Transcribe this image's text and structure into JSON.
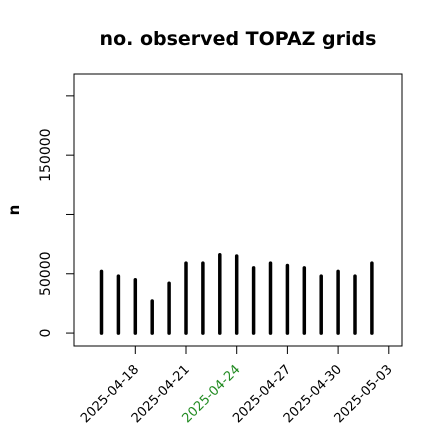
{
  "chart_data": {
    "type": "bar",
    "title": "no. observed TOPAZ grids",
    "ylabel": "n",
    "xlabel": "",
    "ylim": [
      -5000,
      210000
    ],
    "yticks": [
      0,
      50000,
      100000,
      150000
    ],
    "ytick_labels": [
      "0",
      "50000",
      "",
      "150000"
    ],
    "grid": false,
    "x": [
      "2025-04-16",
      "2025-04-17",
      "2025-04-18",
      "2025-04-19",
      "2025-04-20",
      "2025-04-21",
      "2025-04-22",
      "2025-04-23",
      "2025-04-24",
      "2025-04-25",
      "2025-04-26",
      "2025-04-27",
      "2025-04-28",
      "2025-04-29",
      "2025-04-30",
      "2025-05-01",
      "2025-05-02",
      "2025-05-03"
    ],
    "values": [
      52000,
      48000,
      45000,
      27000,
      42000,
      59000,
      59000,
      66000,
      65000,
      55000,
      59000,
      57000,
      55000,
      48000,
      52000,
      48000,
      59000,
      0
    ],
    "xticks": [
      {
        "date": "2025-04-18",
        "label": "2025-04-18",
        "color": "#000000"
      },
      {
        "date": "2025-04-21",
        "label": "2025-04-21",
        "color": "#000000"
      },
      {
        "date": "2025-04-24",
        "label": "2025-04-24",
        "color": "#228B22"
      },
      {
        "date": "2025-04-27",
        "label": "2025-04-27",
        "color": "#000000"
      },
      {
        "date": "2025-04-30",
        "label": "2025-04-30",
        "color": "#000000"
      },
      {
        "date": "2025-05-03",
        "label": "2025-05-03",
        "color": "#000000"
      }
    ],
    "bar_color": "#000000"
  }
}
